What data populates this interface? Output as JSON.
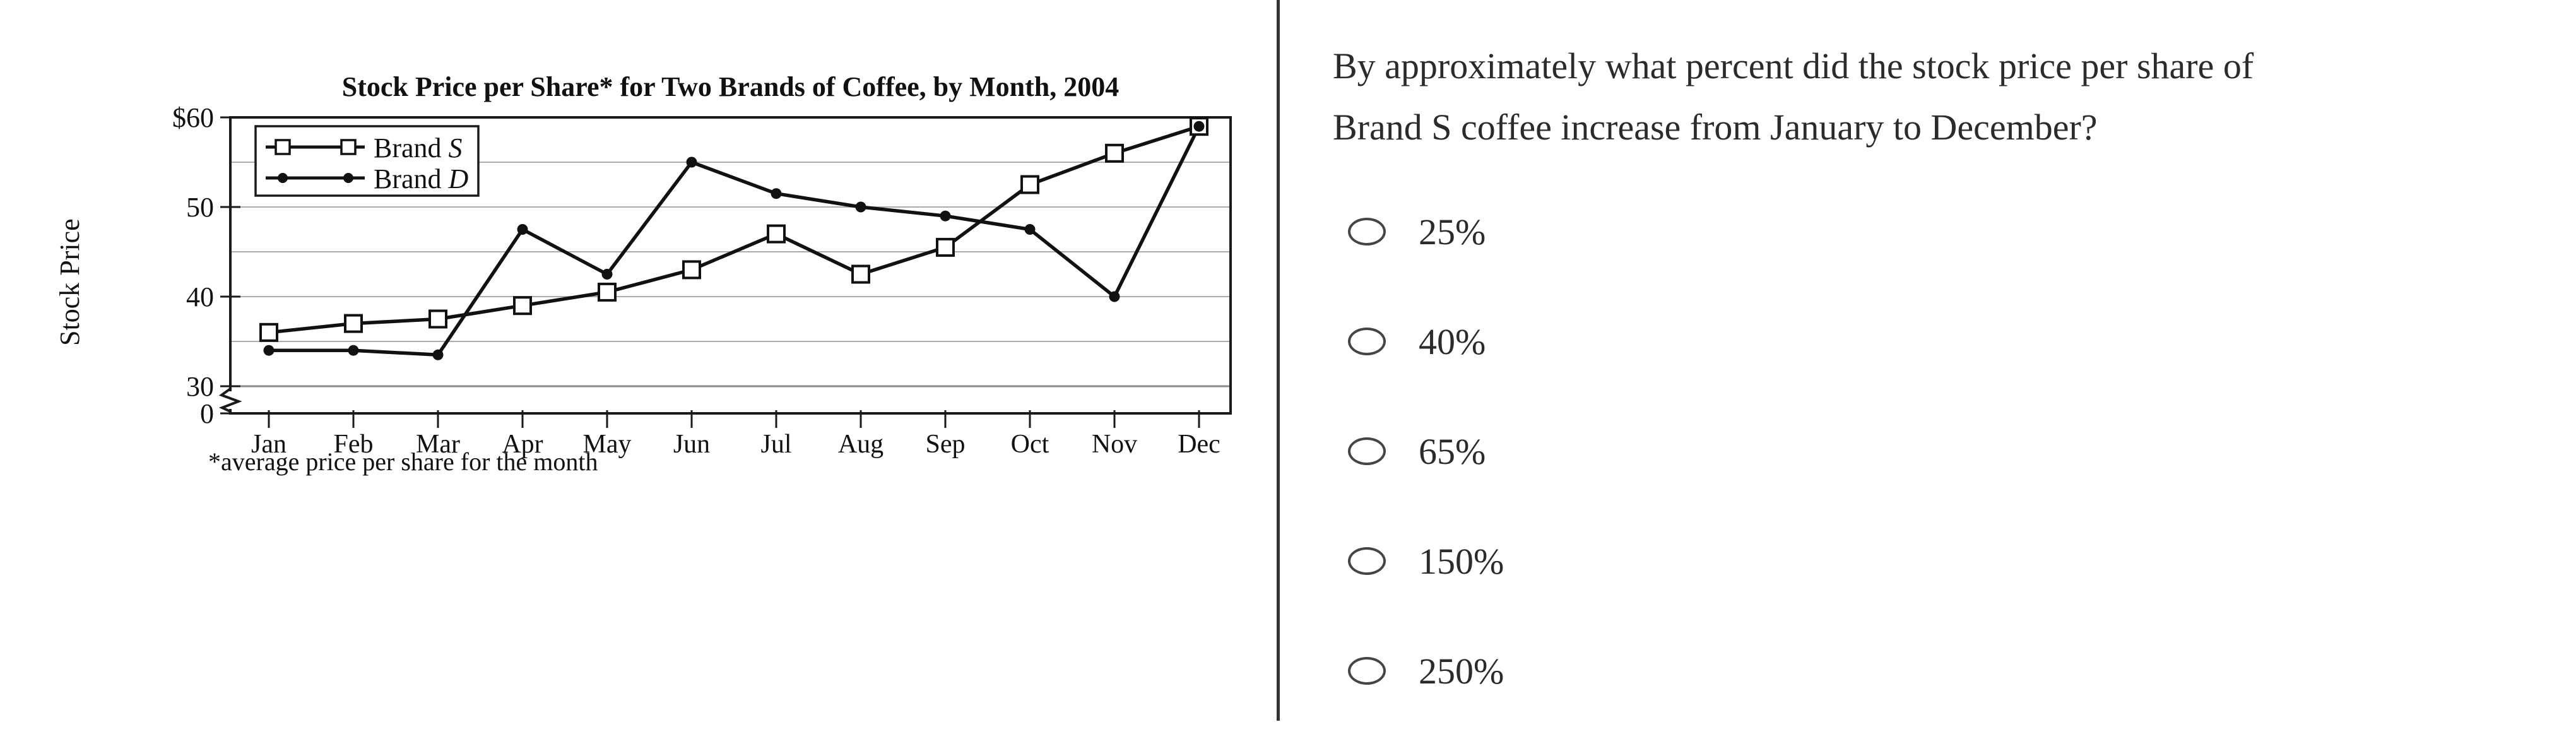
{
  "chart_data": {
    "type": "line",
    "title": "Stock Price per Share* for Two Brands of Coffee, by Month, 2004",
    "ylabel": "Stock Price",
    "footnote": "*average price per share for the month",
    "categories": [
      "Jan",
      "Feb",
      "Mar",
      "Apr",
      "May",
      "Jun",
      "Jul",
      "Aug",
      "Sep",
      "Oct",
      "Nov",
      "Dec"
    ],
    "y_axis": {
      "tick_labels": [
        "$60",
        "50",
        "40",
        "30"
      ],
      "tick_values": [
        60,
        50,
        40,
        30
      ],
      "zero_label": "0",
      "gridlines": [
        30,
        35,
        40,
        45,
        50,
        55
      ],
      "ylim_display": [
        30,
        60
      ],
      "axis_break": true
    },
    "grid": true,
    "legend_position": "top-left-inside",
    "series": [
      {
        "name": "Brand S",
        "marker": "open-square",
        "values": [
          36,
          37,
          37.5,
          39,
          40.5,
          43,
          47,
          42.5,
          45.5,
          52.5,
          56,
          59
        ]
      },
      {
        "name": "Brand D",
        "marker": "filled-circle",
        "values": [
          34,
          34,
          33.5,
          47.5,
          42.5,
          55,
          51.5,
          50,
          49,
          47.5,
          40,
          59
        ]
      }
    ]
  },
  "question": {
    "line1": "By approximately what percent did the stock price per share of",
    "line2": "Brand S coffee increase from January to December?",
    "options": [
      {
        "label": "25%"
      },
      {
        "label": "40%"
      },
      {
        "label": "65%"
      },
      {
        "label": "150%"
      },
      {
        "label": "250%"
      }
    ]
  }
}
